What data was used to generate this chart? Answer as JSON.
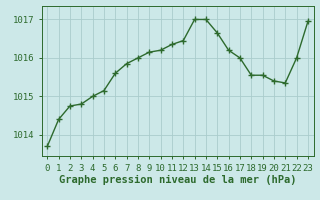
{
  "x": [
    0,
    1,
    2,
    3,
    4,
    5,
    6,
    7,
    8,
    9,
    10,
    11,
    12,
    13,
    14,
    15,
    16,
    17,
    18,
    19,
    20,
    21,
    22,
    23
  ],
  "y": [
    1013.7,
    1014.4,
    1014.75,
    1014.8,
    1015.0,
    1015.15,
    1015.6,
    1015.85,
    1016.0,
    1016.15,
    1016.2,
    1016.35,
    1016.45,
    1017.0,
    1017.0,
    1016.65,
    1016.2,
    1016.0,
    1015.55,
    1015.55,
    1015.4,
    1015.35,
    1016.0,
    1016.95
  ],
  "line_color": "#2d6a2d",
  "marker": "+",
  "marker_size": 4,
  "bg_color": "#cce8e8",
  "grid_color_major": "#aacccc",
  "grid_color_minor": "#c0dede",
  "xlabel": "Graphe pression niveau de la mer (hPa)",
  "yticks": [
    1014,
    1015,
    1016,
    1017
  ],
  "xticks": [
    0,
    1,
    2,
    3,
    4,
    5,
    6,
    7,
    8,
    9,
    10,
    11,
    12,
    13,
    14,
    15,
    16,
    17,
    18,
    19,
    20,
    21,
    22,
    23
  ],
  "ylim": [
    1013.45,
    1017.35
  ],
  "xlim": [
    -0.5,
    23.5
  ],
  "tick_color": "#2d6a2d",
  "tick_fontsize": 6.5,
  "label_fontsize": 7.5,
  "linewidth": 1.0
}
